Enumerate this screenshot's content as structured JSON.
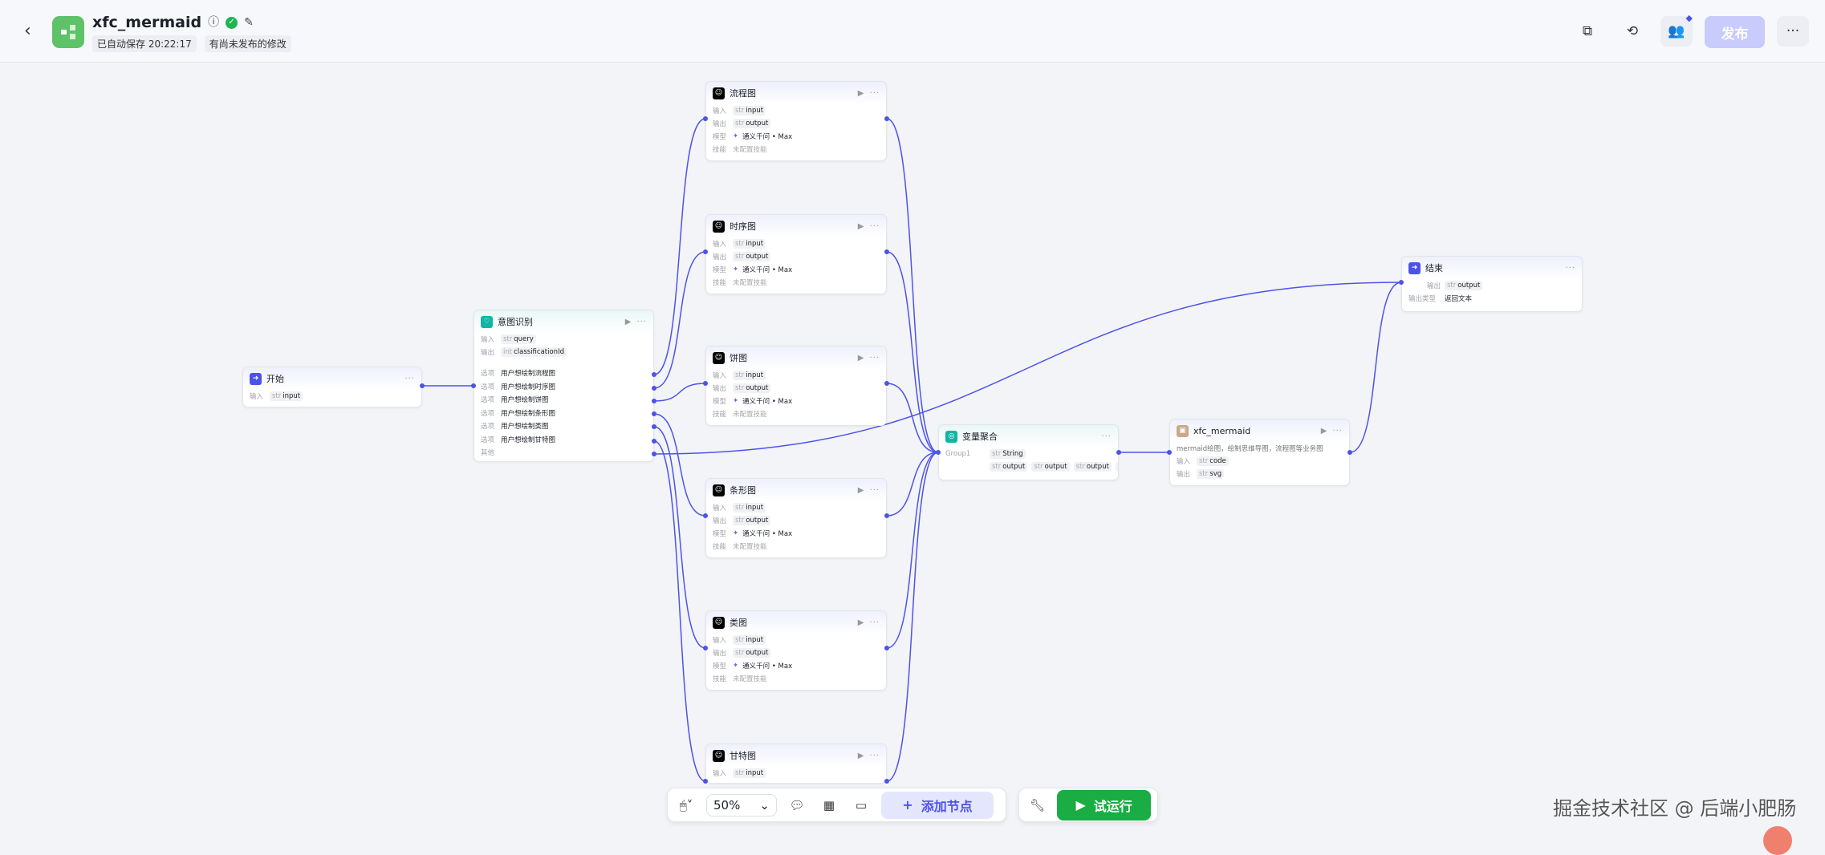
{
  "header": {
    "back_icon": "chevron-left-icon",
    "title": "xfc_mermaid",
    "autosave": "已自动保存 20:22:17",
    "unpublished": "有尚未发布的修改",
    "publish": "发布",
    "more": "···",
    "icons": [
      "copy-icon",
      "history-icon",
      "collaborators-icon",
      "more-icon"
    ]
  },
  "nodes": {
    "start": {
      "title": "开始",
      "rows": [
        {
          "label": "输入",
          "chips": [
            {
              "type": "str",
              "name": "input"
            }
          ]
        }
      ]
    },
    "intent": {
      "title": "意图识别",
      "rows": [
        {
          "label": "输入",
          "chips": [
            {
              "type": "str",
              "name": "query"
            }
          ]
        },
        {
          "label": "输出",
          "chips": [
            {
              "type": "int",
              "name": "classificationId"
            }
          ]
        }
      ],
      "options": [
        {
          "label": "选项",
          "text": "用户想绘制流程图"
        },
        {
          "label": "选项",
          "text": "用户想绘制时序图"
        },
        {
          "label": "选项",
          "text": "用户想绘制饼图"
        },
        {
          "label": "选项",
          "text": "用户想绘制条形图"
        },
        {
          "label": "选项",
          "text": "用户想绘制类图"
        },
        {
          "label": "选项",
          "text": "用户想绘制甘特图"
        },
        {
          "label": "其他",
          "text": ""
        }
      ]
    },
    "llm": [
      {
        "title": "流程图"
      },
      {
        "title": "时序图"
      },
      {
        "title": "饼图"
      },
      {
        "title": "条形图"
      },
      {
        "title": "类图"
      },
      {
        "title": "甘特图"
      }
    ],
    "llm_rows": {
      "input_label": "输入",
      "input": "input",
      "output_label": "输出",
      "output": "output",
      "type": "str",
      "model_label": "模型",
      "model": "通义千问 • Max",
      "skill_label": "技能",
      "skill": "未配置技能"
    },
    "aggregator": {
      "title": "变量聚合",
      "group": "Group1",
      "type_chip": "String",
      "vars": [
        "output",
        "output",
        "output"
      ],
      "more": "···"
    },
    "plugin": {
      "title": "xfc_mermaid",
      "desc": "mermaid绘图，绘制思维导图，流程图等业务图",
      "rows": [
        {
          "label": "输入",
          "chips": [
            {
              "type": "str",
              "name": "code"
            }
          ]
        },
        {
          "label": "输出",
          "chips": [
            {
              "type": "str",
              "name": "svg"
            }
          ]
        }
      ]
    },
    "end": {
      "title": "结束",
      "rows": [
        {
          "label": "输出",
          "chips": [
            {
              "type": "str",
              "name": "output"
            }
          ]
        },
        {
          "label": "输出类型",
          "text": "返回文本"
        }
      ]
    }
  },
  "toolbar": {
    "zoom": "50%",
    "add_node": "添加节点",
    "run": "试运行"
  },
  "watermark": "掘金技术社区 @ 后端小肥肠",
  "colors": {
    "accent": "#4d53e8",
    "run": "#1aad43",
    "logo": "#5ec269",
    "edge": "#4d53e8"
  }
}
